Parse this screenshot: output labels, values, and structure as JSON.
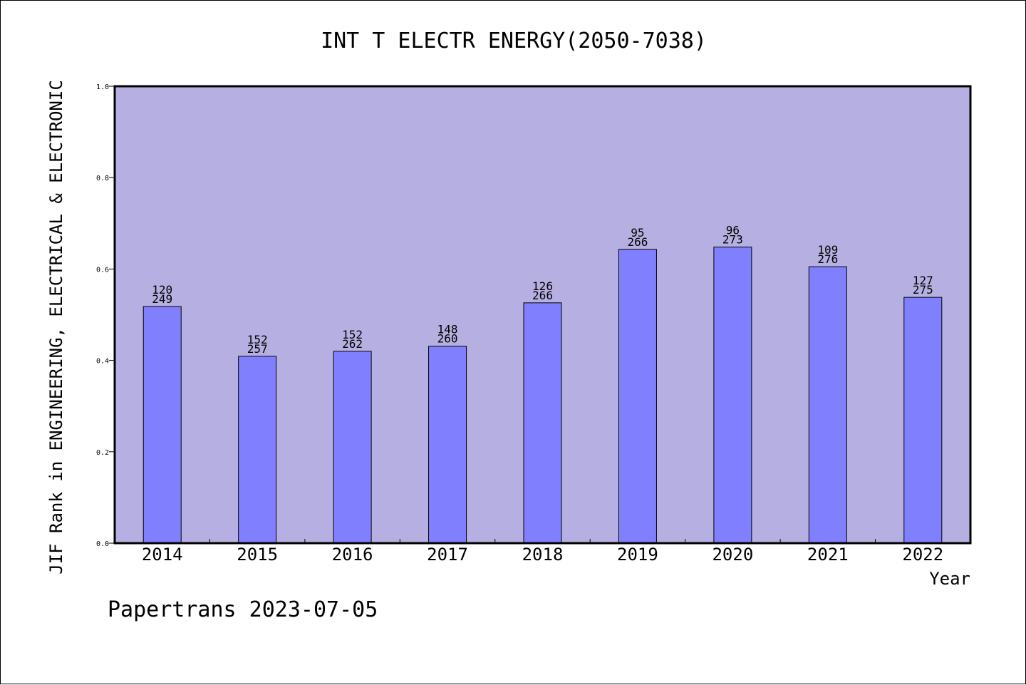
{
  "chart_data": {
    "type": "bar",
    "title": "INT T ELECTR ENERGY(2050-7038)",
    "xlabel": "Year",
    "ylabel": "JIF Rank in ENGINEERING, ELECTRICAL & ELECTRONIC",
    "categories": [
      "2014",
      "2015",
      "2016",
      "2017",
      "2018",
      "2019",
      "2020",
      "2021",
      "2022"
    ],
    "values": [
      0.518,
      0.409,
      0.42,
      0.431,
      0.526,
      0.643,
      0.648,
      0.605,
      0.538
    ],
    "rank": [
      "120",
      "152",
      "152",
      "148",
      "126",
      "95",
      "96",
      "109",
      "127"
    ],
    "total": [
      "249",
      "257",
      "262",
      "260",
      "266",
      "266",
      "273",
      "276",
      "275"
    ],
    "ylim": [
      0,
      1.0
    ],
    "yticks": [
      "0.0",
      "0.2",
      "0.4",
      "0.6",
      "0.8",
      "1.0"
    ],
    "grid": false,
    "colors": {
      "plot_background": "#b6b0e2",
      "bar_fill": "#8080ff",
      "bar_stroke": "#000000"
    }
  },
  "footer": "Papertrans 2023-07-05"
}
